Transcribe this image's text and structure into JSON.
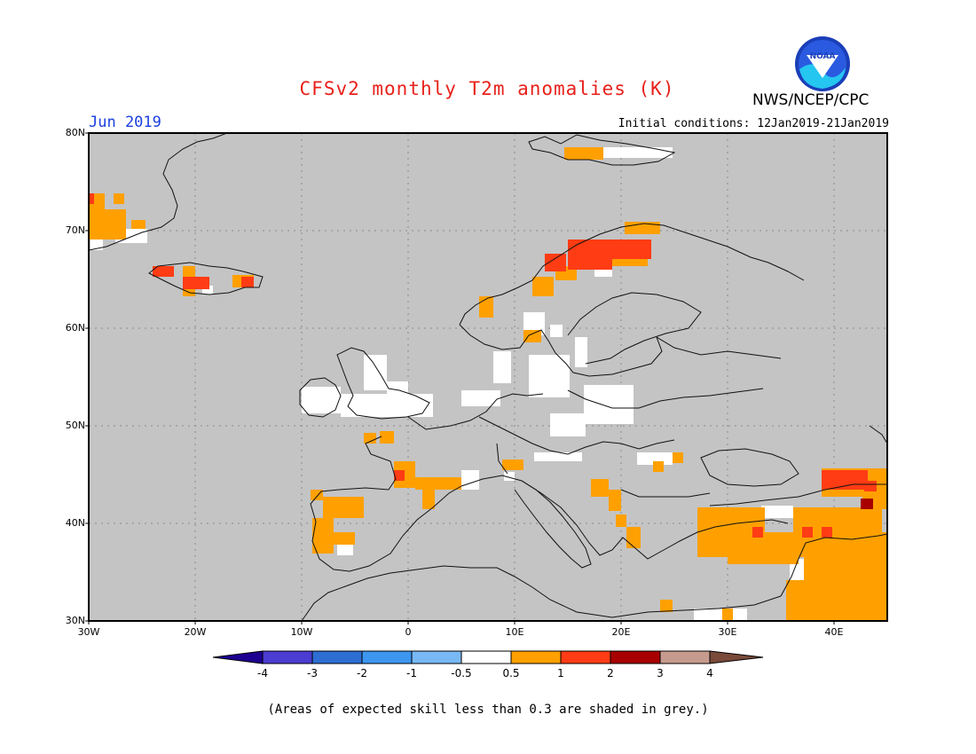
{
  "title": "CFSv2 monthly T2m anomalies (K)",
  "period": "Jun 2019",
  "initial_conditions": "Initial conditions: 12Jan2019-21Jan2019",
  "agency": "NWS/NCEP/CPC",
  "logo_text": "NOAA",
  "footnote": "(Areas of expected skill less than 0.3 are shaded in grey.)",
  "colors": {
    "skill_mask": "#c4c4c4",
    "neutral": "#ffffff",
    "warm_1": "#ffa000",
    "warm_2": "#ff3c14",
    "warm_3": "#a80000",
    "warm_4": "#c79a8e",
    "warm_5": "#7a4a3a"
  },
  "lat_labels": [
    "80N",
    "70N",
    "60N",
    "50N",
    "40N",
    "30N"
  ],
  "lon_labels": [
    "30W",
    "20W",
    "10W",
    "0",
    "10E",
    "20E",
    "30E",
    "40E"
  ],
  "colorbar": {
    "labels": [
      "-4",
      "-3",
      "-2",
      "-1",
      "-0.5",
      "0.5",
      "1",
      "2",
      "3",
      "4"
    ],
    "colors": [
      "#1e0090",
      "#4b3cd2",
      "#2e6ed2",
      "#3c96f0",
      "#78b9f5",
      "#ffffff",
      "#ffa000",
      "#ff3c14",
      "#a80000",
      "#c79a8e",
      "#7a4a3a"
    ]
  }
}
